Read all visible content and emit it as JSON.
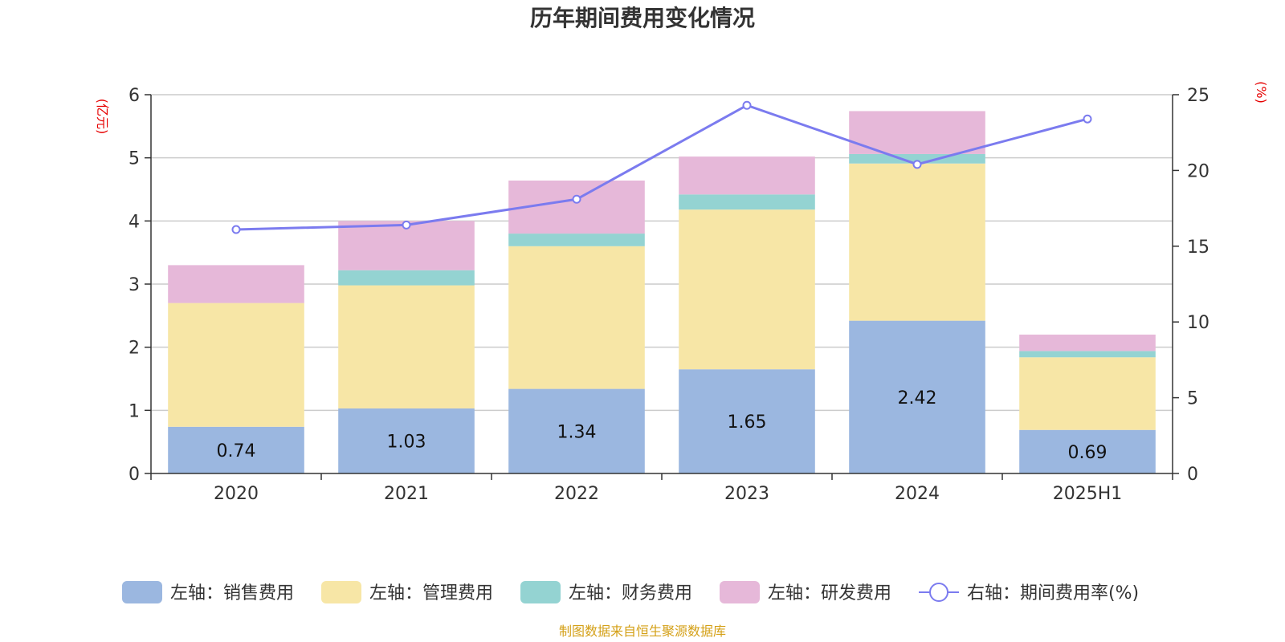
{
  "title": "历年期间费用变化情况",
  "source": "制图数据来自恒生聚源数据库",
  "chart_data": {
    "type": "bar",
    "stacked": true,
    "categories": [
      "2020",
      "2021",
      "2022",
      "2023",
      "2024",
      "2025H1"
    ],
    "left_axis": {
      "name": "(亿元)",
      "ylim": [
        0,
        6
      ],
      "ticks": [
        "0",
        "1",
        "2",
        "3",
        "4",
        "5",
        "6"
      ]
    },
    "right_axis": {
      "name": "(%)",
      "ylim": [
        0,
        25
      ],
      "ticks": [
        "0",
        "5",
        "10",
        "15",
        "20",
        "25"
      ]
    },
    "grid": true,
    "legend_position": "bottom",
    "series": [
      {
        "name": "左轴：销售费用",
        "axis": "left",
        "color": "#9bb7e0",
        "values": [
          0.74,
          1.03,
          1.34,
          1.65,
          2.42,
          0.69
        ],
        "labels": [
          "0.74",
          "1.03",
          "1.34",
          "1.65",
          "2.42",
          "0.69"
        ]
      },
      {
        "name": "左轴：管理费用",
        "axis": "left",
        "color": "#f7e6a6",
        "values": [
          1.96,
          1.95,
          2.26,
          2.53,
          2.49,
          1.15
        ]
      },
      {
        "name": "左轴：财务费用",
        "axis": "left",
        "color": "#94d3d2",
        "values": [
          0.0,
          0.24,
          0.2,
          0.24,
          0.15,
          0.1
        ]
      },
      {
        "name": "左轴：研发费用",
        "axis": "left",
        "color": "#e6b8d9",
        "values": [
          0.6,
          0.78,
          0.84,
          0.6,
          0.68,
          0.26
        ]
      }
    ],
    "line": {
      "name": "右轴：期间费用率(%)",
      "axis": "right",
      "color": "#7b7bef",
      "values": [
        16.1,
        16.4,
        18.1,
        24.3,
        20.4,
        23.4
      ]
    }
  }
}
